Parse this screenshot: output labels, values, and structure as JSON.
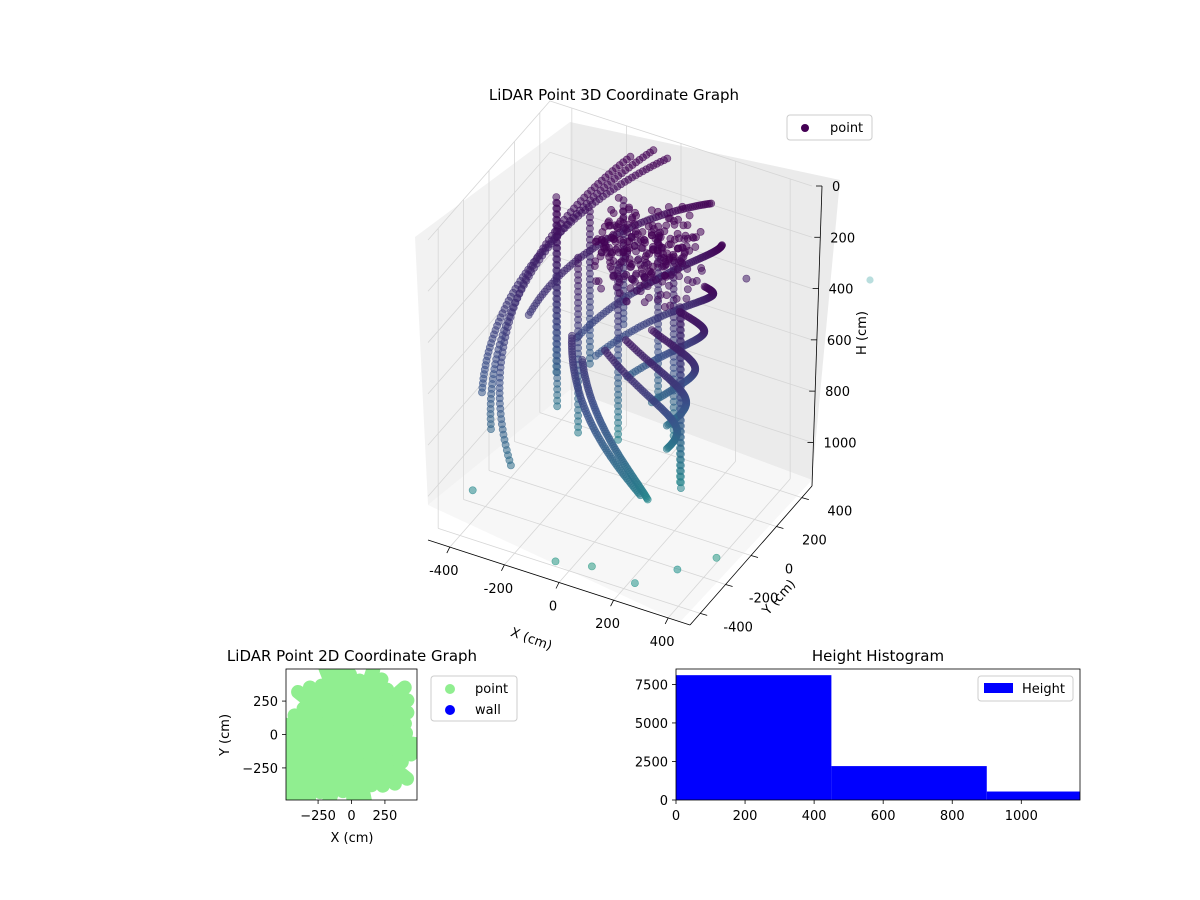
{
  "chart_data": [
    {
      "type": "scatter",
      "projection": "3d",
      "title": "LiDAR Point 3D Coordinate Graph",
      "xlabel": "X (cm)",
      "ylabel": "Y (cm)",
      "zlabel": "H (cm)",
      "xticks": [
        "-400",
        "-200",
        "0",
        "200",
        "400"
      ],
      "yticks": [
        "-400",
        "-200",
        "0",
        "200",
        "400"
      ],
      "zticks": [
        "0",
        "200",
        "400",
        "600",
        "800",
        "1000"
      ],
      "xlim": [
        -480,
        480
      ],
      "ylim": [
        -480,
        480
      ],
      "zlim": [
        0,
        1170
      ],
      "z_inverted": true,
      "grid": true,
      "colormap": "viridis",
      "legend": {
        "position": "top-right",
        "entries": [
          "point"
        ]
      },
      "series": [
        {
          "name": "point",
          "color": "#440154",
          "note_points": "scan arcs approximated",
          "arcs": [
            {
              "center": [
                0,
                0
              ],
              "radius": 460,
              "a0": 95,
              "a1": 200,
              "z0": 60,
              "z1": 760
            },
            {
              "center": [
                0,
                0
              ],
              "radius": 430,
              "a0": 100,
              "a1": 210,
              "z0": 20,
              "z1": 850
            },
            {
              "center": [
                0,
                0
              ],
              "radius": 400,
              "a0": 110,
              "a1": 230,
              "z0": 40,
              "z1": 900
            },
            {
              "center": [
                0,
                0
              ],
              "radius": 370,
              "a0": 60,
              "a1": 170,
              "z0": 80,
              "z1": 560
            },
            {
              "center": [
                0,
                0
              ],
              "radius": 340,
              "a0": 30,
              "a1": 140,
              "z0": 120,
              "z1": 700
            },
            {
              "center": [
                0,
                0
              ],
              "radius": 310,
              "a0": 0,
              "a1": 130,
              "z0": 180,
              "z1": 760
            },
            {
              "center": [
                0,
                0
              ],
              "radius": 280,
              "a0": -20,
              "a1": 110,
              "z0": 240,
              "z1": 820
            },
            {
              "center": [
                0,
                0
              ],
              "radius": 250,
              "a0": -40,
              "a1": 90,
              "z0": 300,
              "z1": 880
            },
            {
              "center": [
                0,
                0
              ],
              "radius": 220,
              "a0": -60,
              "a1": 70,
              "z0": 350,
              "z1": 920
            },
            {
              "center": [
                0,
                0
              ],
              "radius": 190,
              "a0": -80,
              "a1": 60,
              "z0": 420,
              "z1": 980
            },
            {
              "center": [
                0,
                0
              ],
              "radius": 160,
              "a0": 200,
              "a1": 320,
              "z0": 500,
              "z1": 1000
            },
            {
              "center": [
                0,
                0
              ],
              "radius": 130,
              "a0": 220,
              "a1": 340,
              "z0": 560,
              "z1": 1050
            }
          ],
          "verticals": [
            {
              "x": -350,
              "y": 250,
              "z0": 200,
              "z1": 900
            },
            {
              "x": -300,
              "y": 150,
              "z0": 150,
              "z1": 950
            },
            {
              "x": -250,
              "y": 300,
              "z0": 250,
              "z1": 850
            },
            {
              "x": -200,
              "y": 100,
              "z0": 300,
              "z1": 1000
            },
            {
              "x": -150,
              "y": 350,
              "z0": 200,
              "z1": 700
            },
            {
              "x": -100,
              "y": 200,
              "z0": 350,
              "z1": 1050
            },
            {
              "x": 0,
              "y": 300,
              "z0": 250,
              "z1": 900
            },
            {
              "x": 80,
              "y": 250,
              "z0": 300,
              "z1": 1000
            },
            {
              "x": 150,
              "y": 150,
              "z0": 400,
              "z1": 1100
            },
            {
              "x": 200,
              "y": 50,
              "z0": 350,
              "z1": 1050
            }
          ],
          "cap": {
            "x": [
              -50,
              250
            ],
            "y": [
              -150,
              150
            ],
            "z": [
              0,
              250
            ]
          },
          "outliers": [
            {
              "x": 300,
              "y": 350,
              "z": 350
            },
            {
              "x": -50,
              "y": -400,
              "z": 1150
            },
            {
              "x": 60,
              "y": -350,
              "z": 1160
            },
            {
              "x": 350,
              "y": -300,
              "z": 1100
            },
            {
              "x": 400,
              "y": -100,
              "z": 1150
            },
            {
              "x": 250,
              "y": -420,
              "z": 1120
            },
            {
              "x": -400,
              "y": -300,
              "z": 1050
            }
          ]
        }
      ]
    },
    {
      "type": "scatter",
      "title": "LiDAR Point 2D Coordinate Graph",
      "xlabel": "X (cm)",
      "ylabel": "Y (cm)",
      "xticks": [
        "−250",
        "0",
        "250"
      ],
      "yticks": [
        "250",
        "0",
        "−250"
      ],
      "xlim": [
        -490,
        490
      ],
      "ylim": [
        -490,
        490
      ],
      "legend": {
        "position": "outside-right",
        "entries": [
          "point",
          "wall"
        ]
      },
      "series": [
        {
          "name": "point",
          "color": "#90ee90",
          "rays": 36,
          "radius": 480
        },
        {
          "name": "wall",
          "color": "#0000ff"
        }
      ]
    },
    {
      "type": "bar",
      "subtype": "histogram",
      "title": "Height Histogram",
      "xticks": [
        "0",
        "200",
        "400",
        "600",
        "800",
        "1000"
      ],
      "yticks": [
        "0",
        "2500",
        "5000",
        "7500"
      ],
      "xlim": [
        0,
        1170
      ],
      "ylim": [
        0,
        8500
      ],
      "legend": {
        "position": "top-right",
        "entries": [
          "Height"
        ]
      },
      "series": [
        {
          "name": "Height",
          "color": "#0000ff",
          "bins": [
            {
              "start": 0,
              "end": 450,
              "count": 8100
            },
            {
              "start": 450,
              "end": 900,
              "count": 2200
            },
            {
              "start": 900,
              "end": 1170,
              "count": 550
            }
          ]
        }
      ]
    }
  ]
}
